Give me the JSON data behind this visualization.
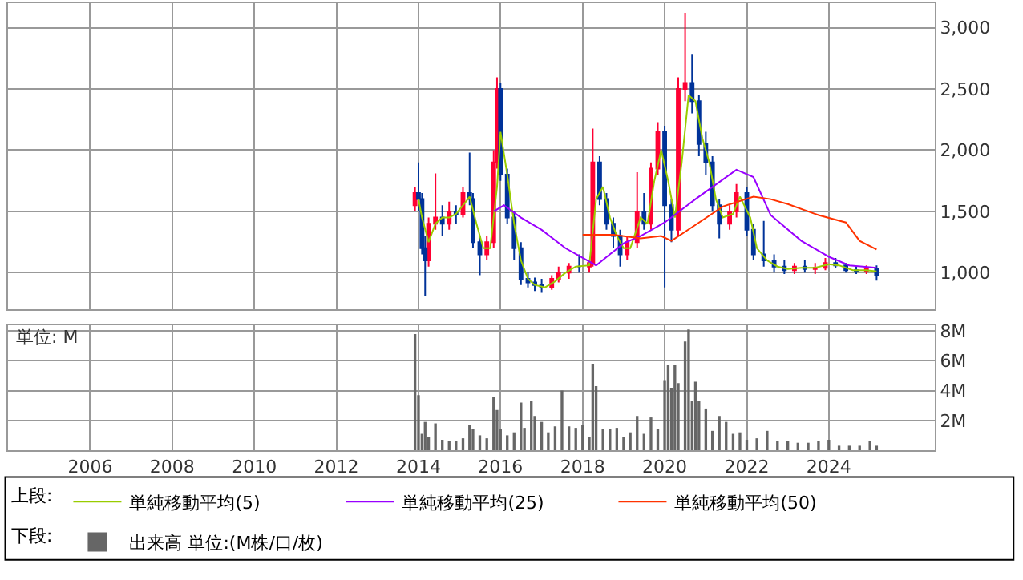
{
  "chart_data": [
    {
      "type": "candlestick",
      "legend": "bottom",
      "legend_title": "上段:",
      "grid": true,
      "tick_labels": "y",
      "xlim": [
        "2004-01",
        "2026-08"
      ],
      "xticks": [
        {
          "value": "2006",
          "label": null
        },
        {
          "value": "2008",
          "label": null
        },
        {
          "value": "2010",
          "label": null
        },
        {
          "value": "2012",
          "label": null
        },
        {
          "value": "2014",
          "label": null
        },
        {
          "value": "2016",
          "label": null
        },
        {
          "value": "2018",
          "label": null
        },
        {
          "value": "2020",
          "label": null
        },
        {
          "value": "2022",
          "label": null
        },
        {
          "value": "2024",
          "label": null
        }
      ],
      "ylim": [
        700,
        3200
      ],
      "yticks": [
        {
          "value": 1000,
          "label": "1,000"
        },
        {
          "value": 1500,
          "label": "1,500"
        },
        {
          "value": 2000,
          "label": "2,000"
        },
        {
          "value": 2500,
          "label": "2,500"
        },
        {
          "value": 3000,
          "label": "3,000"
        }
      ],
      "x": [
        "2013-12",
        "2014-01",
        "2014-02",
        "2014-03",
        "2014-04",
        "2014-06",
        "2014-08",
        "2014-10",
        "2014-12",
        "2015-02",
        "2015-04",
        "2015-05",
        "2015-07",
        "2015-09",
        "2015-11",
        "2015-12",
        "2016-01",
        "2016-03",
        "2016-05",
        "2016-07",
        "2016-09",
        "2016-11",
        "2017-01",
        "2017-04",
        "2017-06",
        "2017-09",
        "2017-12",
        "2018-03",
        "2018-04",
        "2018-06",
        "2018-08",
        "2018-10",
        "2018-12",
        "2019-02",
        "2019-05",
        "2019-07",
        "2019-09",
        "2019-11",
        "2020-01",
        "2020-03",
        "2020-05",
        "2020-07",
        "2020-09",
        "2020-11",
        "2021-01",
        "2021-03",
        "2021-05",
        "2021-08",
        "2021-10",
        "2022-01",
        "2022-03",
        "2022-06",
        "2022-09",
        "2022-12",
        "2023-03",
        "2023-06",
        "2023-09",
        "2023-12",
        "2024-03",
        "2024-06",
        "2024-09",
        "2024-12",
        "2025-03"
      ],
      "ohlc": [
        [
          1550,
          1700,
          1500,
          1650
        ],
        [
          1650,
          1900,
          1500,
          1600
        ],
        [
          1600,
          1650,
          1150,
          1200
        ],
        [
          1200,
          1300,
          810,
          1100
        ],
        [
          1100,
          1450,
          1050,
          1400
        ],
        [
          1400,
          1810,
          1350,
          1450
        ],
        [
          1450,
          1550,
          1300,
          1400
        ],
        [
          1400,
          1580,
          1350,
          1500
        ],
        [
          1500,
          1550,
          1400,
          1480
        ],
        [
          1480,
          1700,
          1450,
          1650
        ],
        [
          1650,
          1980,
          1550,
          1600
        ],
        [
          1600,
          1650,
          1200,
          1250
        ],
        [
          1250,
          1300,
          980,
          1150
        ],
        [
          1150,
          1300,
          1100,
          1250
        ],
        [
          1250,
          2000,
          1200,
          1900
        ],
        [
          1900,
          2595,
          1850,
          2500
        ],
        [
          2500,
          2550,
          1750,
          1800
        ],
        [
          1800,
          1850,
          1400,
          1450
        ],
        [
          1450,
          1500,
          1100,
          1200
        ],
        [
          1200,
          1250,
          900,
          950
        ],
        [
          950,
          1000,
          880,
          920
        ],
        [
          920,
          960,
          850,
          900
        ],
        [
          900,
          950,
          836,
          880
        ],
        [
          880,
          980,
          860,
          950
        ],
        [
          950,
          1050,
          920,
          1000
        ],
        [
          1000,
          1080,
          950,
          1050
        ],
        [
          1050,
          1150,
          1000,
          1050
        ],
        [
          1050,
          1100,
          1000,
          1080
        ],
        [
          1080,
          2177,
          1050,
          1900
        ],
        [
          1900,
          1950,
          1550,
          1600
        ],
        [
          1600,
          1650,
          1350,
          1400
        ],
        [
          1400,
          1450,
          1200,
          1300
        ],
        [
          1300,
          1350,
          1050,
          1150
        ],
        [
          1150,
          1300,
          1100,
          1250
        ],
        [
          1250,
          1820,
          1200,
          1500
        ],
        [
          1500,
          1650,
          1350,
          1400
        ],
        [
          1400,
          1900,
          1350,
          1850
        ],
        [
          1850,
          2228,
          1800,
          2150
        ],
        [
          2150,
          2200,
          880,
          1550
        ],
        [
          1550,
          1600,
          1250,
          1350
        ],
        [
          1350,
          2595,
          1300,
          2500
        ],
        [
          2500,
          3121,
          2400,
          2550
        ],
        [
          2550,
          2780,
          2300,
          2400
        ],
        [
          2400,
          2450,
          1950,
          2050
        ],
        [
          2050,
          2150,
          1800,
          1900
        ],
        [
          1900,
          1950,
          1500,
          1550
        ],
        [
          1550,
          1600,
          1280,
          1400
        ],
        [
          1400,
          1550,
          1350,
          1500
        ],
        [
          1500,
          1724,
          1450,
          1650
        ],
        [
          1650,
          1700,
          1300,
          1350
        ],
        [
          1350,
          1400,
          1100,
          1150
        ],
        [
          1150,
          1422,
          1050,
          1100
        ],
        [
          1100,
          1150,
          1000,
          1050
        ],
        [
          1050,
          1100,
          990,
          1020
        ],
        [
          1020,
          1080,
          990,
          1050
        ],
        [
          1050,
          1100,
          1000,
          1030
        ],
        [
          1030,
          1080,
          990,
          1040
        ],
        [
          1040,
          1120,
          1020,
          1080
        ],
        [
          1080,
          1120,
          1040,
          1060
        ],
        [
          1060,
          1080,
          1000,
          1020
        ],
        [
          1020,
          1050,
          990,
          1010
        ],
        [
          1010,
          1060,
          990,
          1030
        ],
        [
          1030,
          1060,
          935,
          980
        ]
      ],
      "colors": [
        "#ff0033",
        "#003399",
        "#003399",
        "#003399",
        "#ff0033",
        "#ff0033",
        "#003399",
        "#ff0033",
        "#003399",
        "#ff0033",
        "#003399",
        "#003399",
        "#003399",
        "#ff0033",
        "#ff0033",
        "#ff0033",
        "#003399",
        "#003399",
        "#003399",
        "#003399",
        "#003399",
        "#003399",
        "#003399",
        "#ff0033",
        "#ff0033",
        "#ff0033",
        "#003399",
        "#ff0033",
        "#ff0033",
        "#003399",
        "#003399",
        "#003399",
        "#003399",
        "#ff0033",
        "#ff0033",
        "#003399",
        "#ff0033",
        "#ff0033",
        "#003399",
        "#003399",
        "#ff0033",
        "#ff0033",
        "#003399",
        "#003399",
        "#003399",
        "#003399",
        "#003399",
        "#ff0033",
        "#ff0033",
        "#003399",
        "#003399",
        "#003399",
        "#003399",
        "#003399",
        "#ff0033",
        "#003399",
        "#ff0033",
        "#ff0033",
        "#003399",
        "#003399",
        "#003399",
        "#ff0033",
        "#003399"
      ],
      "series": [
        {
          "type": "line",
          "name": "単純移動平均(5)",
          "color": "#99cc00",
          "x": [
            "2014-01",
            "2014-02",
            "2014-04",
            "2014-06",
            "2014-08",
            "2014-10",
            "2014-12",
            "2015-02",
            "2015-04",
            "2015-06",
            "2015-08",
            "2015-10",
            "2015-12",
            "2016-01",
            "2016-03",
            "2016-05",
            "2016-07",
            "2016-09",
            "2016-11",
            "2017-02",
            "2017-05",
            "2017-08",
            "2017-11",
            "2018-03",
            "2018-05",
            "2018-07",
            "2018-09",
            "2018-11",
            "2019-01",
            "2019-03",
            "2019-06",
            "2019-08",
            "2019-10",
            "2019-12",
            "2020-02",
            "2020-04",
            "2020-06",
            "2020-08",
            "2020-10",
            "2020-12",
            "2021-02",
            "2021-04",
            "2021-06",
            "2021-09",
            "2021-11",
            "2022-02",
            "2022-04",
            "2022-07",
            "2022-10",
            "2023-01",
            "2023-05",
            "2023-09",
            "2024-01",
            "2024-04",
            "2024-08",
            "2024-12",
            "2025-03"
          ],
          "values": [
            1600,
            1450,
            1250,
            1400,
            1450,
            1450,
            1480,
            1550,
            1620,
            1400,
            1200,
            1200,
            1700,
            2150,
            1800,
            1400,
            1100,
            950,
            900,
            880,
            930,
            1000,
            1050,
            1060,
            1600,
            1700,
            1450,
            1300,
            1200,
            1200,
            1450,
            1400,
            1750,
            2000,
            1750,
            1450,
            1900,
            2450,
            2400,
            2100,
            1900,
            1600,
            1450,
            1480,
            1620,
            1450,
            1200,
            1100,
            1050,
            1030,
            1040,
            1040,
            1070,
            1060,
            1020,
            1020,
            1010
          ]
        },
        {
          "type": "line",
          "name": "単純移動平均(25)",
          "color": "#9900ff",
          "x": [
            "2015-11",
            "2016-02",
            "2016-07",
            "2017-01",
            "2017-08",
            "2018-05",
            "2019-01",
            "2019-06",
            "2020-01",
            "2020-10",
            "2021-10",
            "2022-03",
            "2022-08",
            "2023-05",
            "2024-01",
            "2024-07",
            "2025-03"
          ],
          "values": [
            1500,
            1550,
            1450,
            1350,
            1200,
            1060,
            1240,
            1300,
            1410,
            1600,
            1840,
            1780,
            1470,
            1260,
            1130,
            1060,
            1040
          ]
        },
        {
          "type": "line",
          "name": "単純移動平均(50)",
          "color": "#ff3300",
          "x": [
            "2018-01",
            "2018-10",
            "2019-06",
            "2019-12",
            "2020-03",
            "2020-10",
            "2021-06",
            "2022-03",
            "2022-08",
            "2023-01",
            "2023-10",
            "2024-06",
            "2024-10",
            "2025-03"
          ],
          "values": [
            1310,
            1310,
            1280,
            1300,
            1260,
            1390,
            1540,
            1620,
            1600,
            1560,
            1470,
            1410,
            1260,
            1190
          ]
        }
      ]
    },
    {
      "type": "bar",
      "legend": "bottom",
      "legend_title": "下段:",
      "grid": true,
      "annotations": [
        "単位: M"
      ],
      "xlim": [
        "2004-01",
        "2026-08"
      ],
      "xticks": [
        "2006",
        "2008",
        "2010",
        "2012",
        "2014",
        "2016",
        "2018",
        "2020",
        "2022",
        "2024"
      ],
      "ylim": [
        0,
        8.4
      ],
      "yticks": [
        {
          "value": 2,
          "label": "2M"
        },
        {
          "value": 4,
          "label": "4M"
        },
        {
          "value": 6,
          "label": "6M"
        },
        {
          "value": 8,
          "label": "8M"
        }
      ],
      "x": [
        "2013-12",
        "2014-01",
        "2014-02",
        "2014-03",
        "2014-04",
        "2014-06",
        "2014-08",
        "2014-10",
        "2014-12",
        "2015-02",
        "2015-04",
        "2015-05",
        "2015-07",
        "2015-09",
        "2015-11",
        "2015-12",
        "2016-01",
        "2016-03",
        "2016-05",
        "2016-07",
        "2016-08",
        "2016-10",
        "2016-11",
        "2017-01",
        "2017-03",
        "2017-05",
        "2017-07",
        "2017-09",
        "2017-11",
        "2018-01",
        "2018-03",
        "2018-04",
        "2018-05",
        "2018-07",
        "2018-09",
        "2018-11",
        "2019-01",
        "2019-03",
        "2019-05",
        "2019-07",
        "2019-09",
        "2019-11",
        "2020-01",
        "2020-02",
        "2020-03",
        "2020-04",
        "2020-05",
        "2020-07",
        "2020-08",
        "2020-09",
        "2020-10",
        "2020-11",
        "2021-01",
        "2021-03",
        "2021-05",
        "2021-07",
        "2021-09",
        "2021-11",
        "2022-01",
        "2022-04",
        "2022-07",
        "2022-10",
        "2023-01",
        "2023-04",
        "2023-07",
        "2023-10",
        "2024-01",
        "2024-04",
        "2024-07",
        "2024-10",
        "2025-01",
        "2025-03"
      ],
      "series": [
        {
          "name": "出来高 単位:(M株/口/枚)",
          "color": "#666666",
          "values": [
            7.8,
            3.7,
            1.1,
            1.9,
            0.9,
            1.8,
            0.7,
            0.6,
            0.6,
            0.8,
            1.7,
            1.4,
            1.0,
            0.8,
            3.6,
            2.7,
            1.4,
            1.0,
            1.2,
            3.2,
            1.5,
            3.3,
            2.3,
            1.9,
            1.2,
            1.6,
            4.0,
            1.6,
            1.5,
            1.7,
            0.9,
            5.8,
            4.3,
            1.4,
            1.4,
            1.5,
            0.9,
            1.2,
            2.3,
            1.1,
            2.2,
            1.4,
            4.7,
            5.7,
            4.2,
            5.7,
            4.5,
            7.3,
            8.1,
            3.3,
            4.6,
            3.3,
            2.8,
            1.3,
            2.3,
            1.9,
            1.1,
            1.2,
            0.7,
            0.8,
            1.3,
            0.6,
            0.6,
            0.5,
            0.5,
            0.6,
            0.7,
            0.3,
            0.3,
            0.3,
            0.6,
            0.3
          ]
        }
      ]
    }
  ]
}
